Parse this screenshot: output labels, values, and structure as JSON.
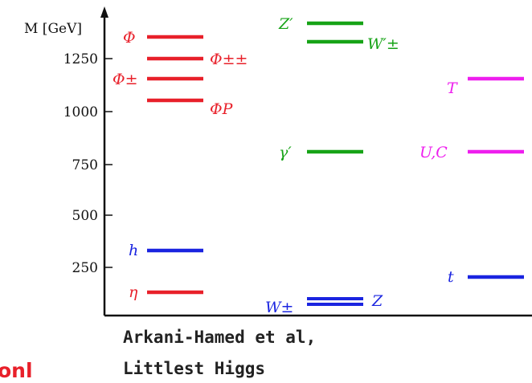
{
  "axis": {
    "label": "M [GeV]",
    "ticks": [
      "1250",
      "1000",
      "750",
      "500",
      "250"
    ]
  },
  "colors": {
    "red": "#e8202a",
    "green": "#16a316",
    "blue": "#1a24e0",
    "magenta": "#ee1eee",
    "axis": "#111111"
  },
  "levels": {
    "red": [
      {
        "label": "Φ",
        "mass": 1340
      },
      {
        "label": "Φ±±",
        "mass": 1250
      },
      {
        "label": "Φ±",
        "mass": 1160
      },
      {
        "label": "ΦP",
        "mass": 1055
      },
      {
        "label": "h",
        "mass": 325
      },
      {
        "label": "η",
        "mass": 125
      }
    ],
    "green": [
      {
        "label": "Z′",
        "mass": 1400
      },
      {
        "label": "W′±",
        "mass": 1320
      },
      {
        "label": "γ′",
        "mass": 800
      }
    ],
    "blue": [
      {
        "label": "W±",
        "mass": 90
      },
      {
        "label": "Z",
        "mass": 75
      },
      {
        "label": "h",
        "mass": 325
      },
      {
        "label": "t",
        "mass": 200
      }
    ],
    "magenta": [
      {
        "label": "T",
        "mass": 1150
      },
      {
        "label": "U,C",
        "mass": 800
      }
    ]
  },
  "caption": {
    "line1": "Arkani-Hamed et al,",
    "line2": "Littlest Higgs"
  },
  "cut_text": "onl"
}
